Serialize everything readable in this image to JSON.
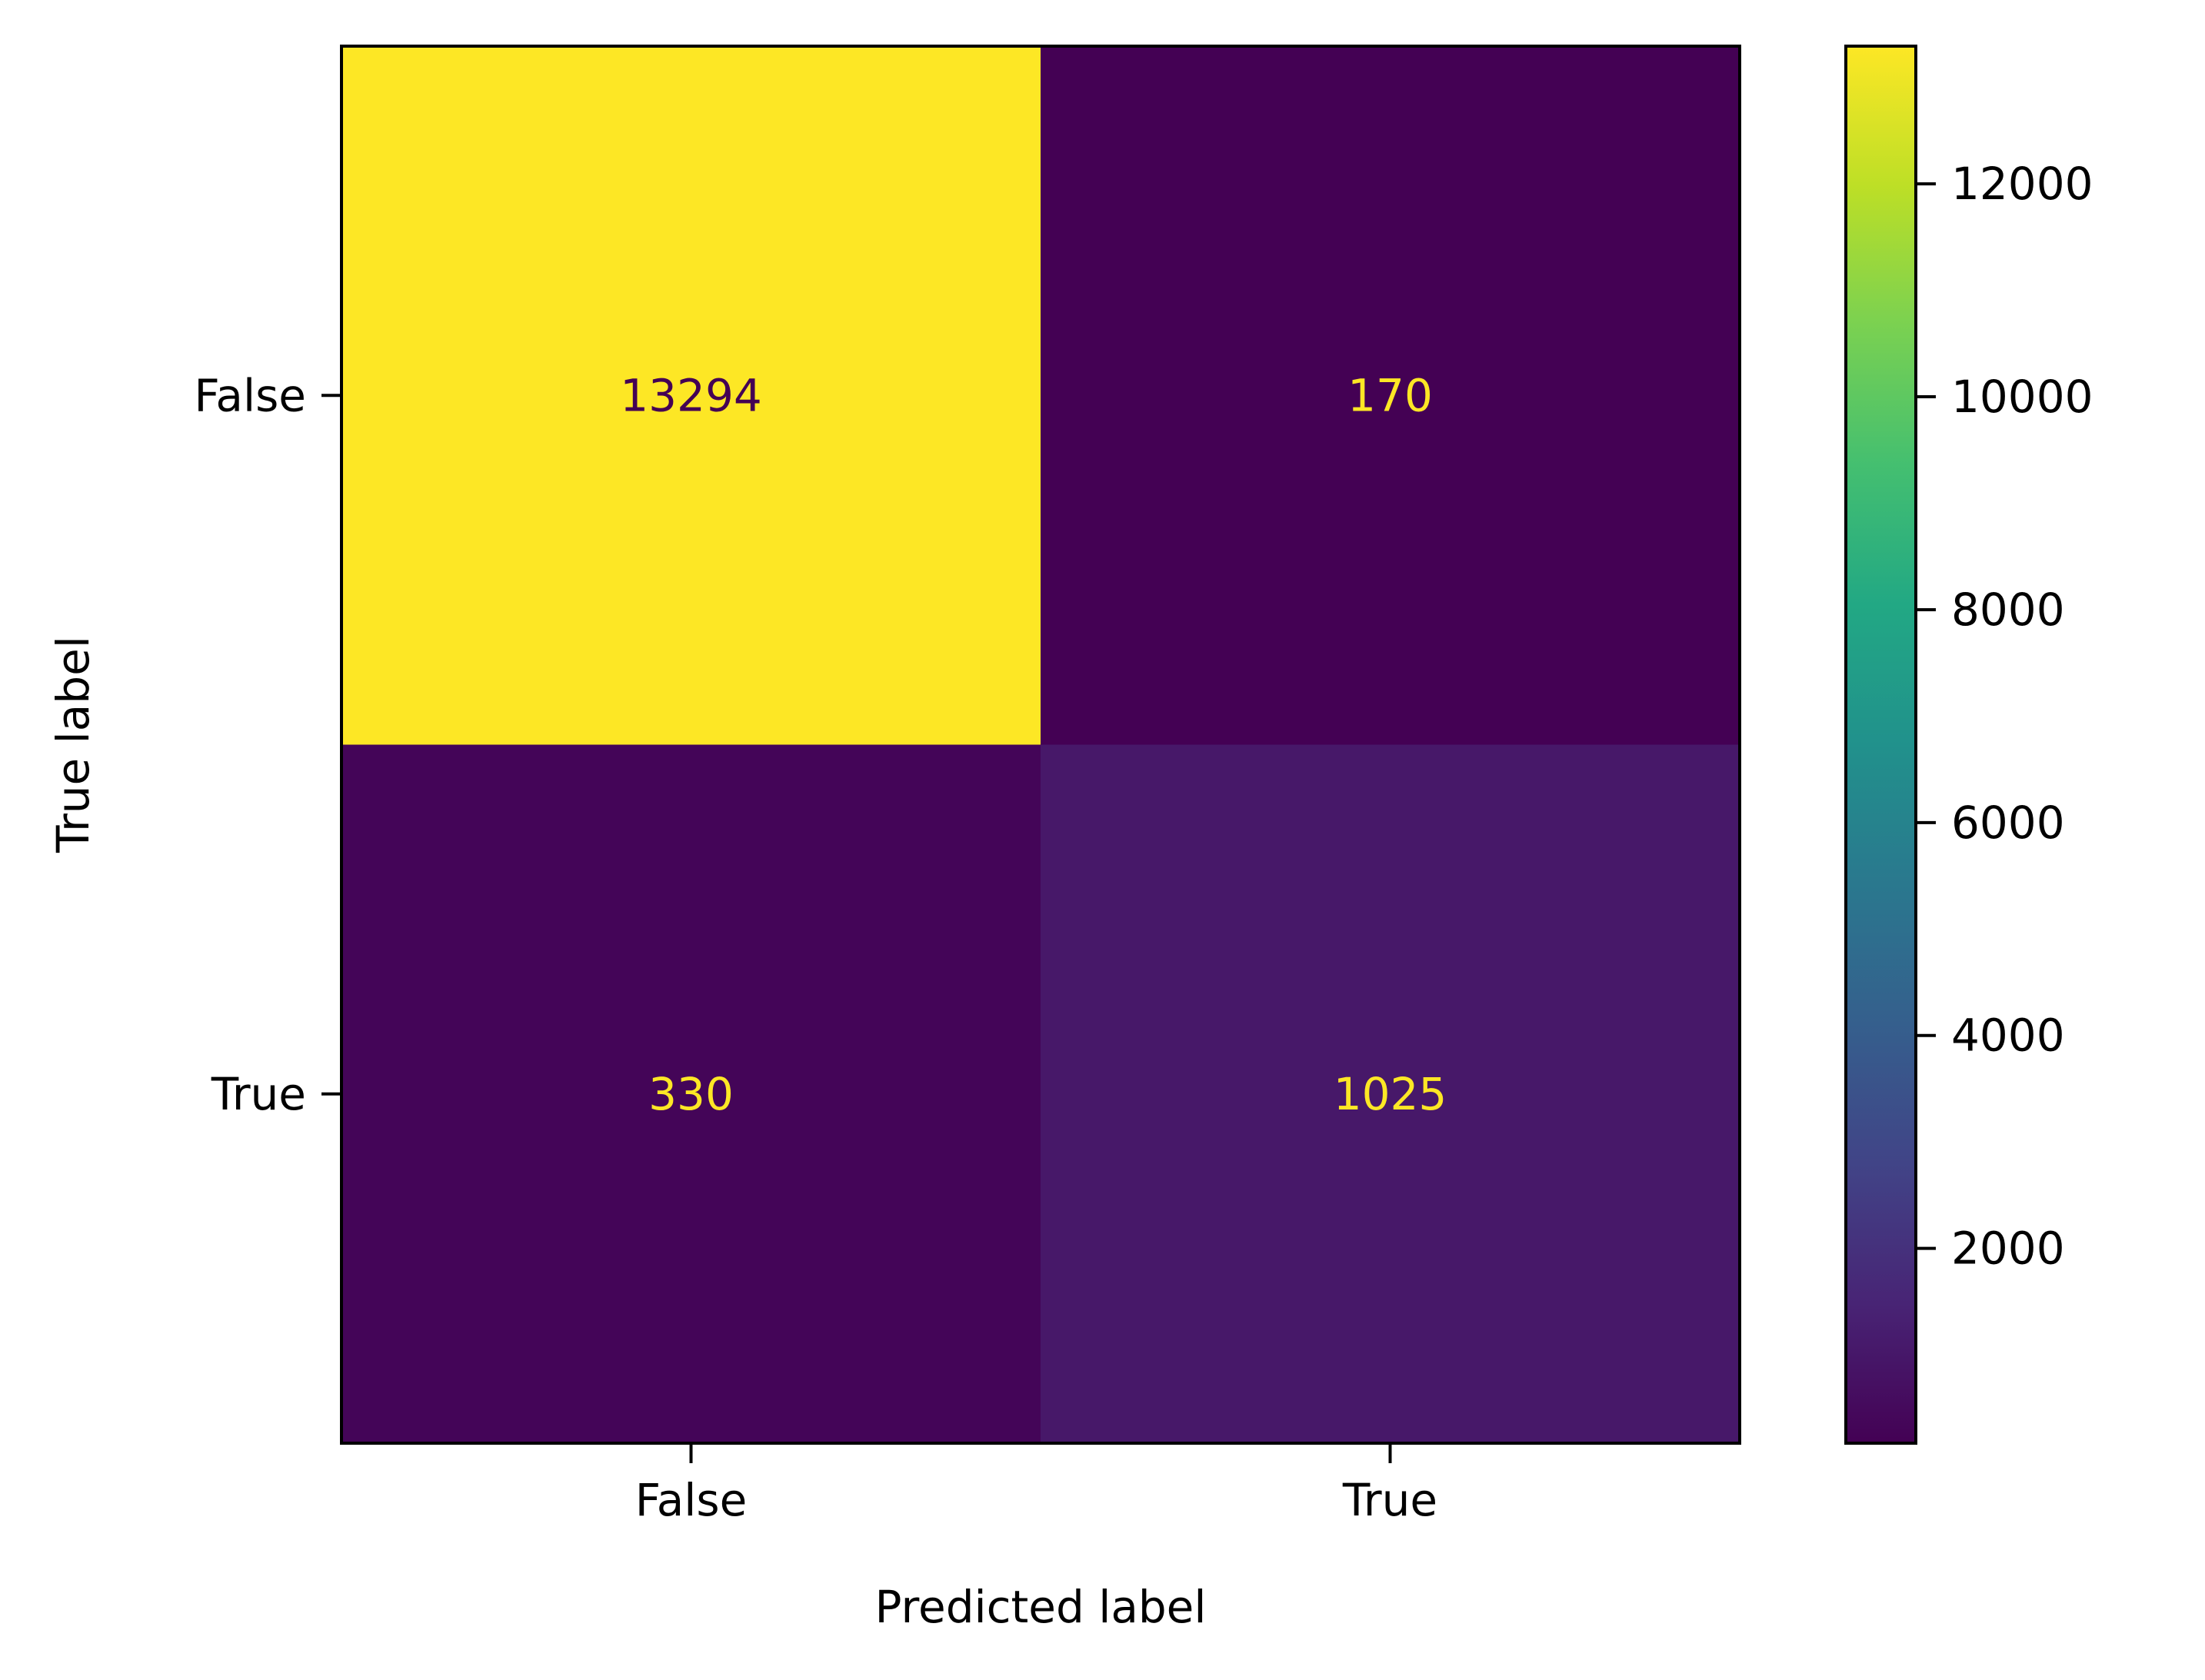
{
  "chart_data": {
    "type": "heatmap",
    "title": "",
    "xlabel": "Predicted label",
    "ylabel": "True label",
    "x_categories": [
      "False",
      "True"
    ],
    "y_categories": [
      "False",
      "True"
    ],
    "values": [
      [
        13294,
        170
      ],
      [
        330,
        1025
      ]
    ],
    "colormap": "viridis",
    "colorbar": {
      "min": 170,
      "max": 13294,
      "ticks": [
        "2000",
        "4000",
        "6000",
        "8000",
        "10000",
        "12000"
      ]
    },
    "grid": false
  }
}
